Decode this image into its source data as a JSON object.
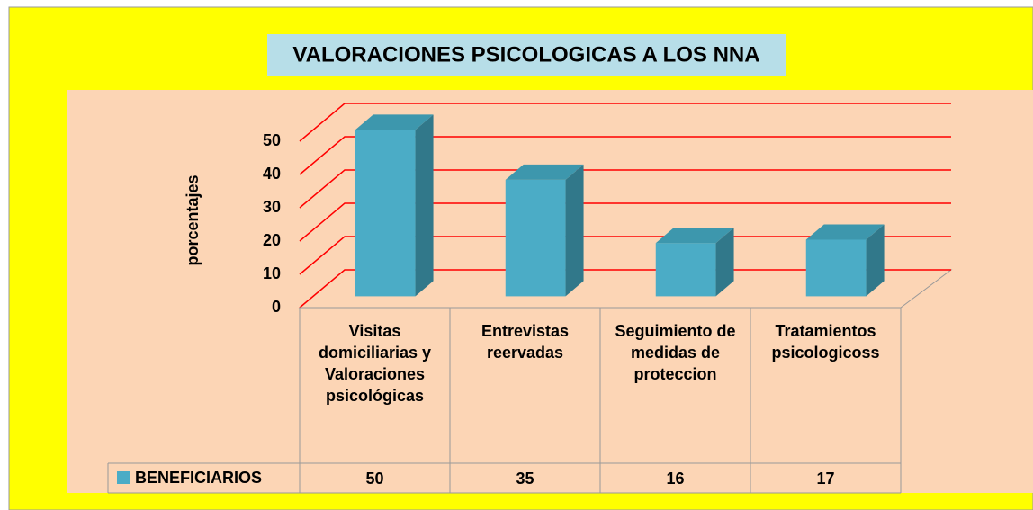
{
  "chart_data": {
    "type": "bar3d",
    "title": "VALORACIONES PSICOLOGICAS A LOS NNA",
    "ylabel": "porcentajes",
    "categories": [
      "Visitas domiciliarias y Valoraciones psicológicas",
      "Entrevistas reervadas",
      "Seguimiento de medidas de proteccion",
      "Tratamientos psicologicoss"
    ],
    "series": [
      {
        "name": "BENEFICIARIOS",
        "color": "#4bacc6",
        "values": [
          50,
          35,
          16,
          17
        ]
      }
    ],
    "ylim": [
      0,
      50
    ],
    "yticks": [
      0,
      10,
      20,
      30,
      40,
      50
    ],
    "grid": true,
    "grid_color": "#ff0000",
    "data_table": true
  }
}
